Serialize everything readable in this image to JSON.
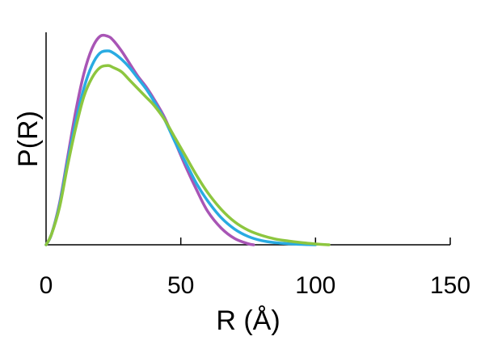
{
  "chart_data": {
    "type": "line",
    "title": "",
    "xlabel": "R (Å)",
    "ylabel": "P(R)",
    "xlim": [
      0,
      150
    ],
    "ylim": [
      0,
      1.0
    ],
    "xticks": [
      0,
      50,
      100,
      150
    ],
    "xtick_labels": [
      "0",
      "50",
      "100",
      "150"
    ],
    "yticks_shown": false,
    "grid": false,
    "legend": "none",
    "series": [
      {
        "color": "#a855b5",
        "x": [
          0,
          2,
          5,
          8,
          11,
          14,
          17,
          20,
          23,
          25,
          28,
          31,
          34,
          37,
          40,
          44,
          48,
          52,
          56,
          60,
          65,
          70,
          75,
          77
        ],
        "y": [
          0,
          0.05,
          0.2,
          0.42,
          0.64,
          0.82,
          0.94,
          1.0,
          1.0,
          0.98,
          0.93,
          0.87,
          0.81,
          0.76,
          0.7,
          0.61,
          0.49,
          0.37,
          0.26,
          0.16,
          0.08,
          0.03,
          0.005,
          0
        ]
      },
      {
        "color": "#29abe2",
        "x": [
          0,
          2,
          5,
          8,
          11,
          14,
          17,
          20,
          23,
          25,
          28,
          31,
          34,
          37,
          40,
          44,
          48,
          52,
          56,
          60,
          65,
          70,
          75,
          80,
          85,
          90,
          95,
          100
        ],
        "y": [
          0,
          0.05,
          0.19,
          0.4,
          0.59,
          0.75,
          0.86,
          0.92,
          0.93,
          0.92,
          0.89,
          0.85,
          0.8,
          0.75,
          0.69,
          0.6,
          0.49,
          0.39,
          0.29,
          0.21,
          0.13,
          0.075,
          0.04,
          0.02,
          0.01,
          0.005,
          0.002,
          0
        ]
      },
      {
        "color": "#8dc63f",
        "x": [
          0,
          2,
          5,
          8,
          11,
          14,
          17,
          20,
          23,
          25,
          28,
          31,
          34,
          37,
          40,
          44,
          48,
          52,
          56,
          60,
          65,
          70,
          75,
          80,
          85,
          90,
          95,
          100,
          105
        ],
        "y": [
          0,
          0.05,
          0.18,
          0.38,
          0.56,
          0.71,
          0.8,
          0.85,
          0.86,
          0.85,
          0.83,
          0.79,
          0.75,
          0.71,
          0.67,
          0.6,
          0.51,
          0.42,
          0.33,
          0.25,
          0.17,
          0.11,
          0.07,
          0.045,
          0.028,
          0.018,
          0.01,
          0.004,
          0
        ]
      }
    ]
  }
}
